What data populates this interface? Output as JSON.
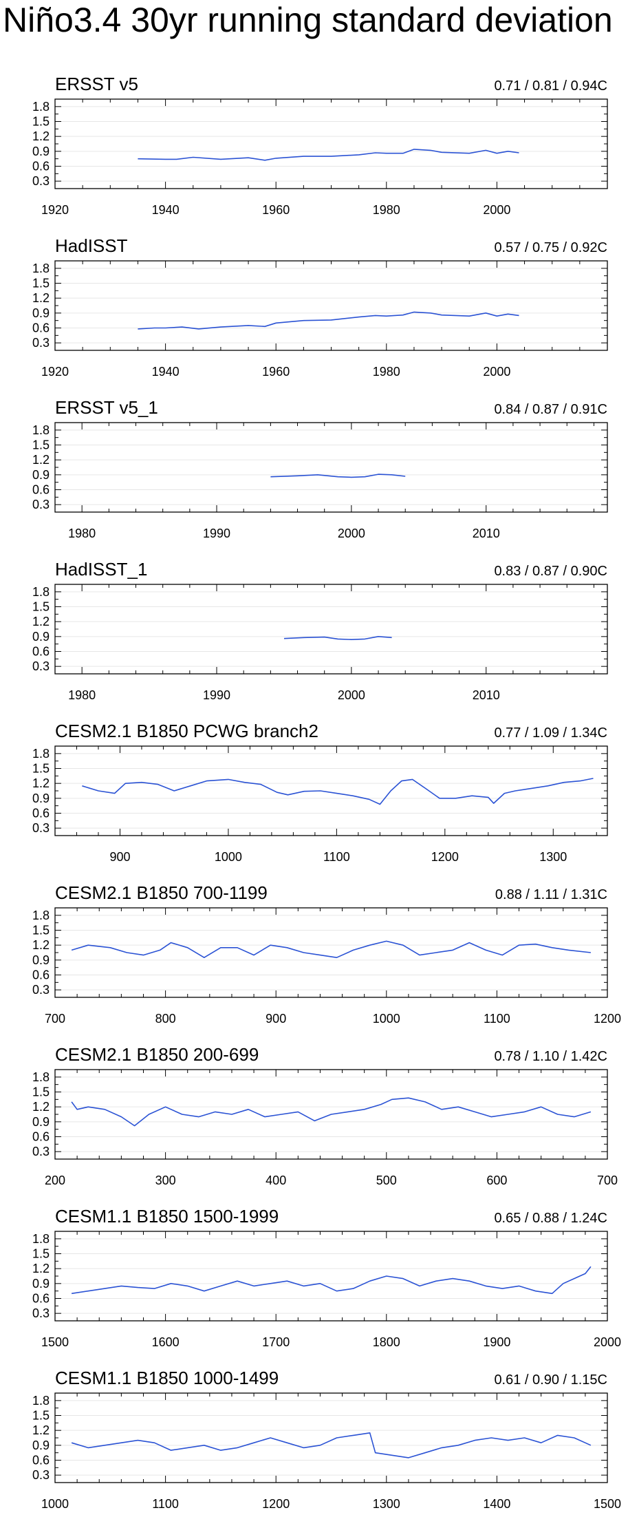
{
  "title": "Niño3.4 30yr running standard deviation",
  "line_color": "#2a52d4",
  "grid_color": "#e6e6e6",
  "chart_data": [
    {
      "type": "line",
      "title": "ERSST v5",
      "stats": "0.71 / 0.81 / 0.94C",
      "xlim": [
        1920,
        2020
      ],
      "xticks": [
        1920,
        1940,
        1960,
        1980,
        2000
      ],
      "xminor": 5,
      "ylim": [
        0.15,
        1.95
      ],
      "yticks": [
        0.3,
        0.6,
        0.9,
        1.2,
        1.5,
        1.8
      ],
      "x": [
        1935,
        1940,
        1942,
        1945,
        1950,
        1955,
        1958,
        1960,
        1965,
        1970,
        1975,
        1978,
        1980,
        1983,
        1985,
        1988,
        1990,
        1995,
        1998,
        2000,
        2002,
        2004
      ],
      "y": [
        0.75,
        0.74,
        0.74,
        0.78,
        0.74,
        0.77,
        0.72,
        0.76,
        0.8,
        0.8,
        0.83,
        0.87,
        0.86,
        0.86,
        0.94,
        0.92,
        0.88,
        0.86,
        0.92,
        0.86,
        0.9,
        0.87
      ]
    },
    {
      "type": "line",
      "title": "HadISST",
      "stats": "0.57 / 0.75 / 0.92C",
      "xlim": [
        1920,
        2020
      ],
      "xticks": [
        1920,
        1940,
        1960,
        1980,
        2000
      ],
      "xminor": 5,
      "ylim": [
        0.15,
        1.95
      ],
      "yticks": [
        0.3,
        0.6,
        0.9,
        1.2,
        1.5,
        1.8
      ],
      "x": [
        1935,
        1938,
        1940,
        1943,
        1946,
        1950,
        1955,
        1958,
        1960,
        1965,
        1970,
        1975,
        1978,
        1980,
        1983,
        1985,
        1988,
        1990,
        1995,
        1998,
        2000,
        2002,
        2004
      ],
      "y": [
        0.58,
        0.6,
        0.6,
        0.62,
        0.58,
        0.62,
        0.65,
        0.63,
        0.7,
        0.75,
        0.76,
        0.82,
        0.85,
        0.84,
        0.86,
        0.92,
        0.9,
        0.86,
        0.84,
        0.9,
        0.84,
        0.88,
        0.85
      ]
    },
    {
      "type": "line",
      "title": "ERSST v5_1",
      "stats": "0.84 / 0.87 / 0.91C",
      "xlim": [
        1978,
        2019
      ],
      "xticks": [
        1980,
        1990,
        2000,
        2010
      ],
      "xminor": 2,
      "ylim": [
        0.15,
        1.95
      ],
      "yticks": [
        0.3,
        0.6,
        0.9,
        1.2,
        1.5,
        1.8
      ],
      "x": [
        1994,
        1996,
        1997.5,
        1999,
        2000,
        2001,
        2002,
        2003,
        2004
      ],
      "y": [
        0.86,
        0.88,
        0.9,
        0.86,
        0.85,
        0.86,
        0.91,
        0.9,
        0.87
      ]
    },
    {
      "type": "line",
      "title": "HadISST_1",
      "stats": "0.83 / 0.87 / 0.90C",
      "xlim": [
        1978,
        2019
      ],
      "xticks": [
        1980,
        1990,
        2000,
        2010
      ],
      "xminor": 2,
      "ylim": [
        0.15,
        1.95
      ],
      "yticks": [
        0.3,
        0.6,
        0.9,
        1.2,
        1.5,
        1.8
      ],
      "x": [
        1995,
        1996.5,
        1998,
        1999,
        2000,
        2001,
        2002,
        2003
      ],
      "y": [
        0.86,
        0.88,
        0.89,
        0.85,
        0.84,
        0.85,
        0.9,
        0.88
      ]
    },
    {
      "type": "line",
      "title": "CESM2.1 B1850 PCWG branch2",
      "stats": "0.77 / 1.09 / 1.34C",
      "xlim": [
        840,
        1350
      ],
      "xticks": [
        900,
        1000,
        1100,
        1200,
        1300
      ],
      "xminor": 20,
      "ylim": [
        0.15,
        1.95
      ],
      "yticks": [
        0.3,
        0.6,
        0.9,
        1.2,
        1.5,
        1.8
      ],
      "x": [
        865,
        880,
        895,
        905,
        920,
        935,
        950,
        965,
        980,
        1000,
        1015,
        1030,
        1045,
        1055,
        1070,
        1085,
        1100,
        1115,
        1130,
        1140,
        1150,
        1160,
        1170,
        1182,
        1195,
        1210,
        1225,
        1240,
        1245,
        1255,
        1265,
        1280,
        1295,
        1310,
        1325,
        1337
      ],
      "y": [
        1.15,
        1.05,
        1.0,
        1.2,
        1.22,
        1.18,
        1.05,
        1.15,
        1.25,
        1.28,
        1.22,
        1.18,
        1.02,
        0.97,
        1.04,
        1.05,
        1.0,
        0.95,
        0.88,
        0.78,
        1.05,
        1.25,
        1.28,
        1.1,
        0.9,
        0.9,
        0.95,
        0.92,
        0.8,
        1.0,
        1.05,
        1.1,
        1.15,
        1.22,
        1.25,
        1.3
      ]
    },
    {
      "type": "line",
      "title": "CESM2.1 B1850 700-1199",
      "stats": "0.88 / 1.11 / 1.31C",
      "xlim": [
        700,
        1200
      ],
      "xticks": [
        700,
        800,
        900,
        1000,
        1100,
        1200
      ],
      "xminor": 20,
      "ylim": [
        0.15,
        1.95
      ],
      "yticks": [
        0.3,
        0.6,
        0.9,
        1.2,
        1.5,
        1.8
      ],
      "x": [
        715,
        730,
        750,
        765,
        780,
        795,
        805,
        820,
        835,
        850,
        865,
        880,
        895,
        910,
        925,
        940,
        955,
        970,
        985,
        1000,
        1015,
        1030,
        1045,
        1060,
        1075,
        1090,
        1105,
        1120,
        1135,
        1150,
        1165,
        1185
      ],
      "y": [
        1.1,
        1.2,
        1.15,
        1.05,
        1.0,
        1.1,
        1.25,
        1.15,
        0.95,
        1.15,
        1.15,
        1.0,
        1.2,
        1.15,
        1.05,
        1.0,
        0.95,
        1.1,
        1.2,
        1.28,
        1.2,
        1.0,
        1.05,
        1.1,
        1.25,
        1.1,
        1.0,
        1.2,
        1.22,
        1.15,
        1.1,
        1.05
      ]
    },
    {
      "type": "line",
      "title": "CESM2.1 B1850 200-699",
      "stats": "0.78 / 1.10 / 1.42C",
      "xlim": [
        200,
        700
      ],
      "xticks": [
        200,
        300,
        400,
        500,
        600,
        700
      ],
      "xminor": 20,
      "ylim": [
        0.15,
        1.95
      ],
      "yticks": [
        0.3,
        0.6,
        0.9,
        1.2,
        1.5,
        1.8
      ],
      "x": [
        215,
        220,
        230,
        245,
        260,
        272,
        285,
        300,
        315,
        330,
        345,
        360,
        375,
        390,
        405,
        420,
        435,
        450,
        465,
        480,
        495,
        505,
        520,
        535,
        550,
        565,
        580,
        595,
        610,
        625,
        640,
        655,
        670,
        685
      ],
      "y": [
        1.3,
        1.15,
        1.2,
        1.15,
        1.0,
        0.82,
        1.05,
        1.2,
        1.05,
        1.0,
        1.1,
        1.05,
        1.15,
        1.0,
        1.05,
        1.1,
        0.92,
        1.05,
        1.1,
        1.15,
        1.25,
        1.35,
        1.38,
        1.3,
        1.15,
        1.2,
        1.1,
        1.0,
        1.05,
        1.1,
        1.2,
        1.05,
        1.0,
        1.1
      ]
    },
    {
      "type": "line",
      "title": "CESM1.1 B1850 1500-1999",
      "stats": "0.65 / 0.88 / 1.24C",
      "xlim": [
        1500,
        2000
      ],
      "xticks": [
        1500,
        1600,
        1700,
        1800,
        1900,
        2000
      ],
      "xminor": 20,
      "ylim": [
        0.15,
        1.95
      ],
      "yticks": [
        0.3,
        0.6,
        0.9,
        1.2,
        1.5,
        1.8
      ],
      "x": [
        1515,
        1530,
        1545,
        1560,
        1575,
        1590,
        1605,
        1620,
        1635,
        1650,
        1665,
        1680,
        1695,
        1710,
        1725,
        1740,
        1755,
        1770,
        1785,
        1800,
        1815,
        1830,
        1845,
        1860,
        1875,
        1890,
        1905,
        1920,
        1935,
        1950,
        1960,
        1970,
        1980,
        1985
      ],
      "y": [
        0.7,
        0.75,
        0.8,
        0.85,
        0.82,
        0.8,
        0.9,
        0.85,
        0.75,
        0.85,
        0.95,
        0.85,
        0.9,
        0.95,
        0.85,
        0.9,
        0.75,
        0.8,
        0.95,
        1.05,
        1.0,
        0.85,
        0.95,
        1.0,
        0.95,
        0.85,
        0.8,
        0.85,
        0.75,
        0.7,
        0.9,
        1.0,
        1.1,
        1.24
      ]
    },
    {
      "type": "line",
      "title": "CESM1.1 B1850 1000-1499",
      "stats": "0.61 / 0.90 / 1.15C",
      "xlim": [
        1000,
        1500
      ],
      "xticks": [
        1000,
        1100,
        1200,
        1300,
        1400,
        1500
      ],
      "xminor": 20,
      "ylim": [
        0.15,
        1.95
      ],
      "yticks": [
        0.3,
        0.6,
        0.9,
        1.2,
        1.5,
        1.8
      ],
      "x": [
        1015,
        1030,
        1045,
        1060,
        1075,
        1090,
        1105,
        1120,
        1135,
        1150,
        1165,
        1180,
        1195,
        1210,
        1225,
        1240,
        1255,
        1270,
        1285,
        1290,
        1305,
        1320,
        1335,
        1350,
        1365,
        1380,
        1395,
        1410,
        1425,
        1440,
        1455,
        1470,
        1485
      ],
      "y": [
        0.95,
        0.85,
        0.9,
        0.95,
        1.0,
        0.95,
        0.8,
        0.85,
        0.9,
        0.8,
        0.85,
        0.95,
        1.05,
        0.95,
        0.85,
        0.9,
        1.05,
        1.1,
        1.15,
        0.75,
        0.7,
        0.65,
        0.75,
        0.85,
        0.9,
        1.0,
        1.05,
        1.0,
        1.05,
        0.95,
        1.1,
        1.05,
        0.9
      ]
    }
  ]
}
